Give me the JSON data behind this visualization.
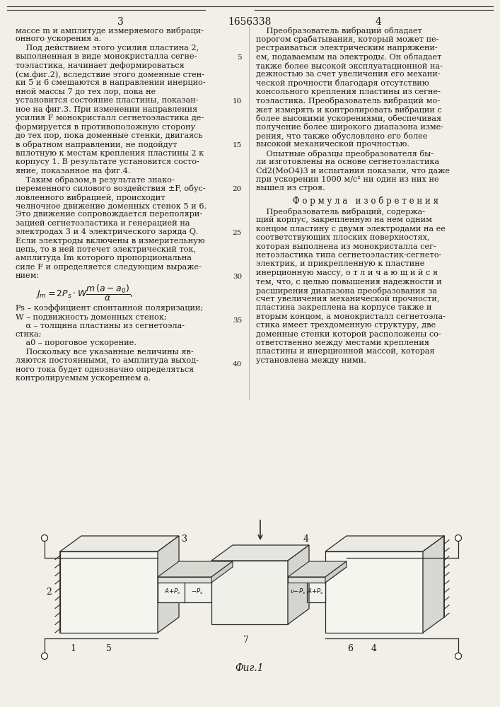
{
  "page_number_left": "3",
  "page_number_center": "1656338",
  "page_number_right": "4",
  "left_column_text": [
    "массе m и амплитуде измеряемого вибраци-",
    "онного ускорения а.",
    "    Под действием этого усилия пластина 2,",
    "выполненная в виде монокристалла сегне-",
    "тоэластика, начинает деформироваться",
    "(см.фиг.2), вследствие этого доменные стен-",
    "ки 5 и 6 смещаются в направлении инерцио-",
    "нной массы 7 до тех лор, пока не",
    "установится состояние пластины, показан-",
    "ное на фиг.3. При изменении направления",
    "усилия F монокристалл сегнетоэластика де-",
    "формируется в противоположную сторону",
    "до тех пор, пока доменные стенки, двигаясь",
    "в обратном направлении, не подойдут",
    "вплотную к местам крепления пластины 2 к",
    "корпусу 1. В результате установится состо-",
    "яние, показанное на фиг.4.",
    "    Таким образом,в результате знако-",
    "переменного силового воздействия ±F, обус-",
    "ловленного вибрацией, происходит",
    "челночное движение доменных стенок 5 и 6.",
    "Это движение сопровождается переполяри-",
    "зацией сегнетоэластика и генерацией на",
    "электродах 3 и 4 электрического заряда Q.",
    "Если электроды включены в измерительную",
    "цепь, то в ней потечет электрический ток,",
    "амплитуда Im которого пропорциональна",
    "силе F и определяется следующим выраже-",
    "нием:"
  ],
  "left_column_text2": [
    "Ps – коэффициент спонтанной поляризации;",
    "W – подвижность доменных стенок;",
    "    α – толщина пластины из сегнетоэла-",
    "стика;",
    "    a0 – пороговое ускорение.",
    "    Поскольку все указанные величины яв-",
    "ляются постоянными, то амплитуда выход-",
    "ного тока будет однозначно определяться",
    "контролируемым ускорением а."
  ],
  "right_column_text": [
    "    Преобразователь вибраций обладает",
    "порогом срабатывания, который может пе-",
    "рестраиваться электрическим напряжени-",
    "ем, подаваемым на электроды. Он обладает",
    "также более высокой эксплуатационной на-",
    "дежностью за счет увеличения его механи-",
    "ческой прочности благодаря отсутствию",
    "консольного крепления пластины из сегне-",
    "тоэластика. Преобразователь вибраций мо-",
    "жет измерять и контролировать вибрации с",
    "более высокими ускорениями, обеспечивая",
    "получение более широкого диапазона изме-",
    "рения, что также обусловлено его более",
    "высокой механической прочностью.",
    "    Опытные образцы преобразователя бы-",
    "ли изготовлены на основе сегнетоэластика",
    "Cd2(MoO4)3 и испытания показали, что даже",
    "при ускорении 1000 м/с² ни один из них не",
    "вышел из строя."
  ],
  "formula_title": "Ф о р м у л а   и з о б р е т е н и я",
  "right_column_text2": [
    "    Преобразователь вибраций, содержа-",
    "щий корпус, закрепленную на нем одним",
    "концом пластину с двумя электродами на ее",
    "соответствующих плоских поверхностях,",
    "которая выполнена из монокристалла сег-",
    "нетоэластика типа сегнетоэластик-сегнето-",
    "электрик, и прикрепленную к пластине",
    "инерционную массу, о т л и ч а ю щ и й с я",
    "тем, что, с целью повышения надежности и",
    "расширения диапазона преобразования за",
    "счет увеличения механической прочности,",
    "пластина закреплена на корпусе также и",
    "вторым концом, а монокристалл сегнетоэла-",
    "стика имеет трехдоменную структуру, две",
    "доменные стенки которой расположены со-",
    "ответственно между местами крепления",
    "пластины и инерционной массой, которая",
    "установлена между ними."
  ],
  "fig_caption": "Фиг.1",
  "bg_color": "#f2efe9",
  "text_color": "#1a1a1a",
  "line_color": "#2a2a2a"
}
